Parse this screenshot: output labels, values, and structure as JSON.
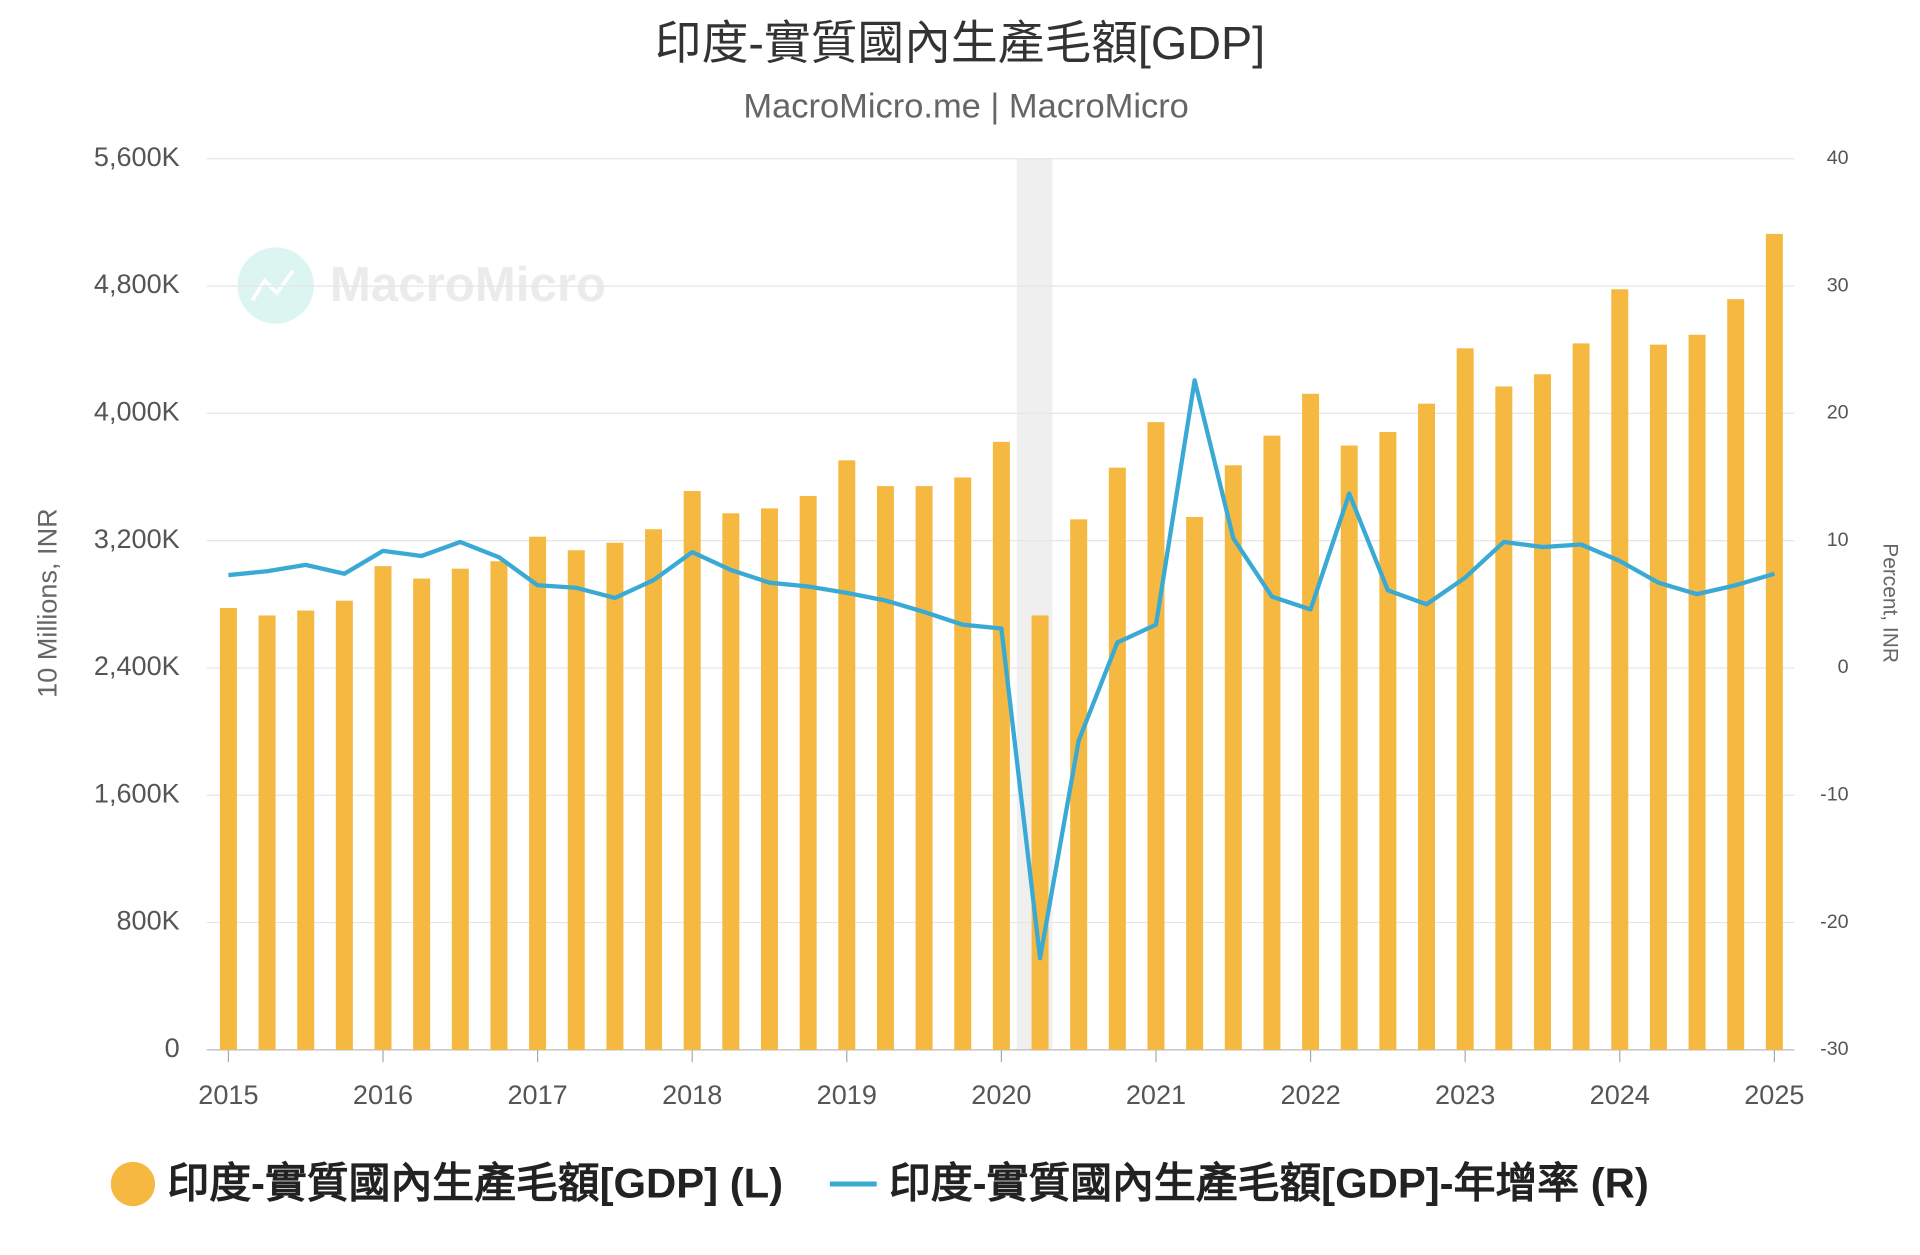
{
  "chart_data": {
    "type": "bar_line",
    "title": "印度-實質國內生產毛額[GDP]",
    "subtitle": "MacroMicro.me | MacroMicro",
    "watermark": "MacroMicro",
    "y_label": "10 Millions, INR",
    "y2_label": "Percent, INR",
    "x": [
      2015,
      2015.25,
      2015.5,
      2015.75,
      2016,
      2016.25,
      2016.5,
      2016.75,
      2017,
      2017.25,
      2017.5,
      2017.75,
      2018,
      2018.25,
      2018.5,
      2018.75,
      2019,
      2019.25,
      2019.5,
      2019.75,
      2020,
      2020.25,
      2020.5,
      2020.75,
      2021,
      2021.25,
      2021.5,
      2021.75,
      2022,
      2022.25,
      2022.5,
      2022.75,
      2023,
      2023.25,
      2023.5,
      2023.75,
      2024,
      2024.25,
      2024.5,
      2024.75,
      2025
    ],
    "series": [
      {
        "name": "印度-實質國內生產毛額[GDP] (L)",
        "type": "bar",
        "axis": "y",
        "color": "#f5b942",
        "values": [
          2777000,
          2730000,
          2761000,
          2823000,
          3040000,
          2962000,
          3024000,
          3071000,
          3225000,
          3140000,
          3187000,
          3272000,
          3512000,
          3372000,
          3403000,
          3481000,
          3705000,
          3543000,
          3543000,
          3597000,
          3821000,
          2730000,
          3334000,
          3659000,
          3945000,
          3349000,
          3674000,
          3860000,
          4123000,
          3798000,
          3883000,
          4061000,
          4409000,
          4169000,
          4246000,
          4440000,
          4780000,
          4432000,
          4494000,
          4718000,
          5128000
        ]
      },
      {
        "name": "印度-實質國內生產毛額[GDP]-年增率 (R)",
        "type": "line",
        "axis": "y2",
        "color": "#3aaad4",
        "values": [
          7.3,
          7.6,
          8.1,
          7.4,
          9.2,
          8.8,
          9.9,
          8.7,
          6.5,
          6.3,
          5.5,
          6.9,
          9.1,
          7.7,
          6.7,
          6.4,
          5.9,
          5.3,
          4.4,
          3.4,
          3.1,
          -22.8,
          -5.7,
          2.0,
          3.4,
          22.6,
          10.2,
          5.6,
          4.6,
          13.7,
          6.1,
          5.0,
          7.1,
          9.9,
          9.5,
          9.7,
          8.4,
          6.7,
          5.8,
          6.5,
          7.4
        ]
      }
    ],
    "xlim": [
      2014.86,
      2025.13
    ],
    "xticks": [
      2015,
      2016,
      2017,
      2018,
      2019,
      2020,
      2021,
      2022,
      2023,
      2024,
      2025
    ],
    "ylim": [
      0,
      5600000
    ],
    "yticks": [
      0,
      {
        "value": 800000,
        "label": "800K"
      },
      {
        "value": 1600000,
        "label": "1,600K"
      },
      {
        "value": 2400000,
        "label": "2,400K"
      },
      {
        "value": 3200000,
        "label": "3,200K"
      },
      {
        "value": 4000000,
        "label": "4,000K"
      },
      {
        "value": 4800000,
        "label": "4,800K"
      },
      {
        "value": 5600000,
        "label": "5,600K"
      }
    ],
    "y2lim": [
      -30,
      40
    ],
    "y2ticks": [
      -30,
      -20,
      -10,
      0,
      10,
      20,
      30,
      40
    ],
    "shade": [
      2020.1,
      2020.33
    ],
    "grid": true,
    "legend": "bottom"
  }
}
